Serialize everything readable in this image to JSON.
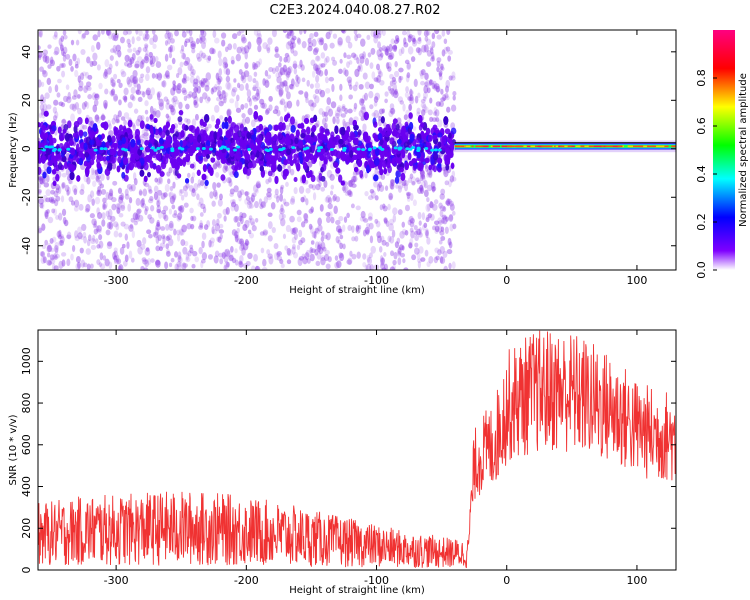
{
  "title": "C2E3.2024.040.08.27.R02",
  "chart_data": [
    {
      "type": "heatmap",
      "xlabel": "Height of straight line (km)",
      "ylabel": "Frequency (Hz)",
      "xlim": [
        -360,
        130
      ],
      "ylim": [
        -50,
        49
      ],
      "xticks": [
        -300,
        -200,
        -100,
        0,
        100
      ],
      "yticks": [
        -40,
        -20,
        0,
        20,
        40
      ],
      "transition_x": -40,
      "colorbar": {
        "label": "Normalized spectral amplitude",
        "range": [
          0.0,
          1.0
        ],
        "ticks": [
          0.0,
          0.2,
          0.4,
          0.6,
          0.8
        ],
        "colors": [
          "#ffffff",
          "#7f00ff",
          "#0000ff",
          "#00ffff",
          "#00ff00",
          "#ffff00",
          "#ff0000",
          "#ff0080"
        ]
      },
      "series": [
        {
          "region": "below -40 km",
          "center_frequency_hz": 0,
          "core_halfwidth_hz": 10,
          "amplitude_level": "0.1-0.3 scattered broadband"
        },
        {
          "region": "above -40 km",
          "center_frequency_hz": 1,
          "core_halfwidth_hz": 2,
          "amplitude_level": "0.6-0.9 narrow band"
        }
      ]
    },
    {
      "type": "line",
      "xlabel": "Height of straight line (km)",
      "ylabel": "SNR (10 * v/v)",
      "xlim": [
        -360,
        130
      ],
      "ylim": [
        0,
        1150
      ],
      "xticks": [
        -300,
        -200,
        -100,
        0,
        100
      ],
      "yticks": [
        0,
        200,
        400,
        600,
        800,
        1000
      ],
      "line_color": "#f03232",
      "series": [
        {
          "name": "SNR",
          "x": [
            -360,
            -340,
            -320,
            -300,
            -280,
            -260,
            -240,
            -220,
            -200,
            -180,
            -160,
            -140,
            -120,
            -100,
            -80,
            -60,
            -40,
            -30,
            -25,
            -20,
            -10,
            0,
            10,
            20,
            30,
            40,
            50,
            60,
            70,
            80,
            90,
            100,
            108,
            115,
            125,
            130
          ],
          "y": [
            170,
            180,
            190,
            190,
            195,
            200,
            200,
            195,
            185,
            175,
            160,
            145,
            130,
            115,
            100,
            90,
            80,
            78,
            500,
            550,
            600,
            780,
            820,
            850,
            860,
            860,
            850,
            830,
            800,
            770,
            730,
            680,
            660,
            650,
            640,
            630
          ]
        }
      ]
    }
  ]
}
